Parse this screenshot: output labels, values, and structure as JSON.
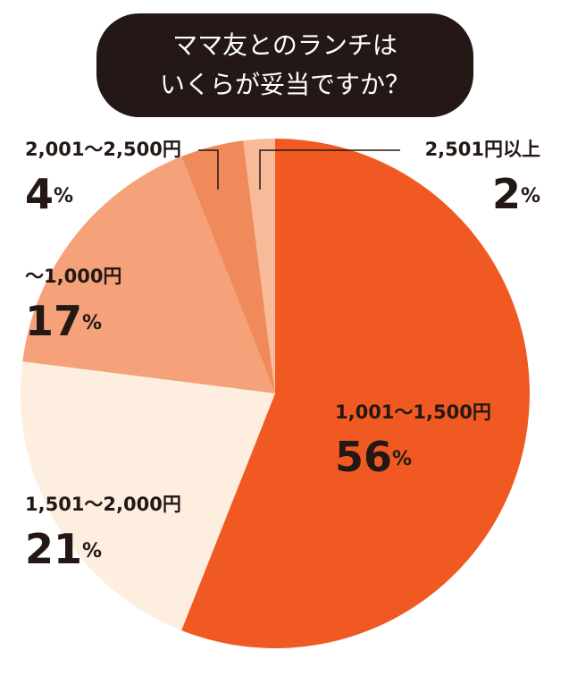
{
  "chart_data": {
    "type": "pie",
    "title": [
      "ママ友とのランチは",
      "いくらが妥当ですか？"
    ],
    "categories": [
      "1,001〜1,500円",
      "1,501〜2,000円",
      "〜1,000円",
      "2,001〜2,500円",
      "2,501円以上"
    ],
    "values": [
      56,
      21,
      17,
      4,
      2
    ],
    "value_labels": [
      "56%",
      "21%",
      "17%",
      "4%",
      "2%"
    ],
    "colors": [
      "#f05a22",
      "#fdeee0",
      "#f5a27a",
      "#f08a5a",
      "#f8bb9a"
    ]
  }
}
